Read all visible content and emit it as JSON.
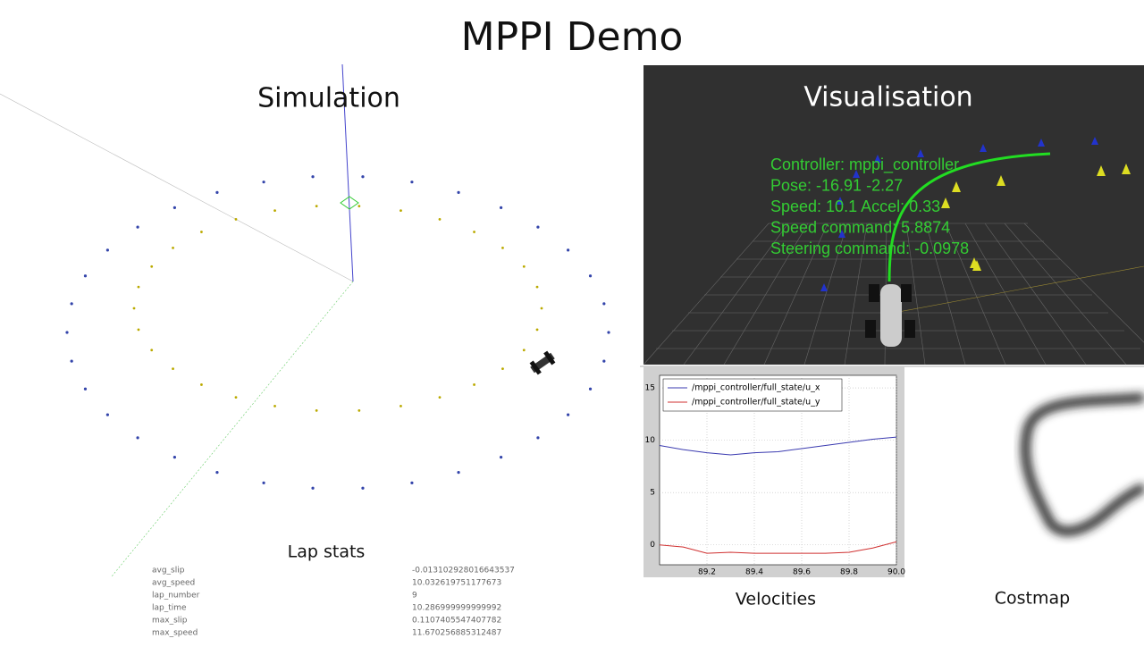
{
  "title": "MPPI Demo",
  "simulation": {
    "title": "Simulation"
  },
  "visualisation": {
    "title": "Visualisation",
    "overlay": [
      "Controller:  mppi_controller",
      "Pose:  -16.91  -2.27",
      "Speed:  10.1    Accel:  0.33",
      "Speed  command:  5.8874",
      "Steering  command:  -0.0978"
    ]
  },
  "lap_stats": {
    "title": "Lap stats",
    "rows": [
      [
        "avg_slip",
        "-0.013102928016643537"
      ],
      [
        "avg_speed",
        "10.032619751177673"
      ],
      [
        "lap_number",
        "9"
      ],
      [
        "lap_time",
        "10.286999999999992"
      ],
      [
        "max_slip",
        "0.1107405547407782"
      ],
      [
        "max_speed",
        "11.670256885312487"
      ]
    ]
  },
  "chart_data": {
    "type": "line",
    "title": "Velocities",
    "x": [
      89.0,
      89.1,
      89.2,
      89.3,
      89.4,
      89.5,
      89.6,
      89.7,
      89.8,
      89.9,
      90.0
    ],
    "series": [
      {
        "name": "/mppi_controller/full_state/u_x",
        "color": "#3b3bb0",
        "values": [
          9.5,
          9.1,
          8.8,
          8.6,
          8.8,
          8.9,
          9.2,
          9.5,
          9.8,
          10.1,
          10.3
        ]
      },
      {
        "name": "/mppi_controller/full_state/u_y",
        "color": "#d03030",
        "values": [
          0.0,
          -0.2,
          -0.8,
          -0.7,
          -0.8,
          -0.8,
          -0.8,
          -0.8,
          -0.7,
          -0.3,
          0.3
        ]
      }
    ],
    "xlim": [
      89.0,
      90.0
    ],
    "xticks": [
      89.2,
      89.4,
      89.6,
      89.8,
      {
        "value": 90,
        "label": "90.0"
      }
    ],
    "ylim": [
      -1.9,
      16.2
    ],
    "yticks": [
      0,
      5,
      10,
      15
    ],
    "grid": true,
    "legend": "upper-left"
  },
  "costmap": {
    "title": "Costmap"
  }
}
